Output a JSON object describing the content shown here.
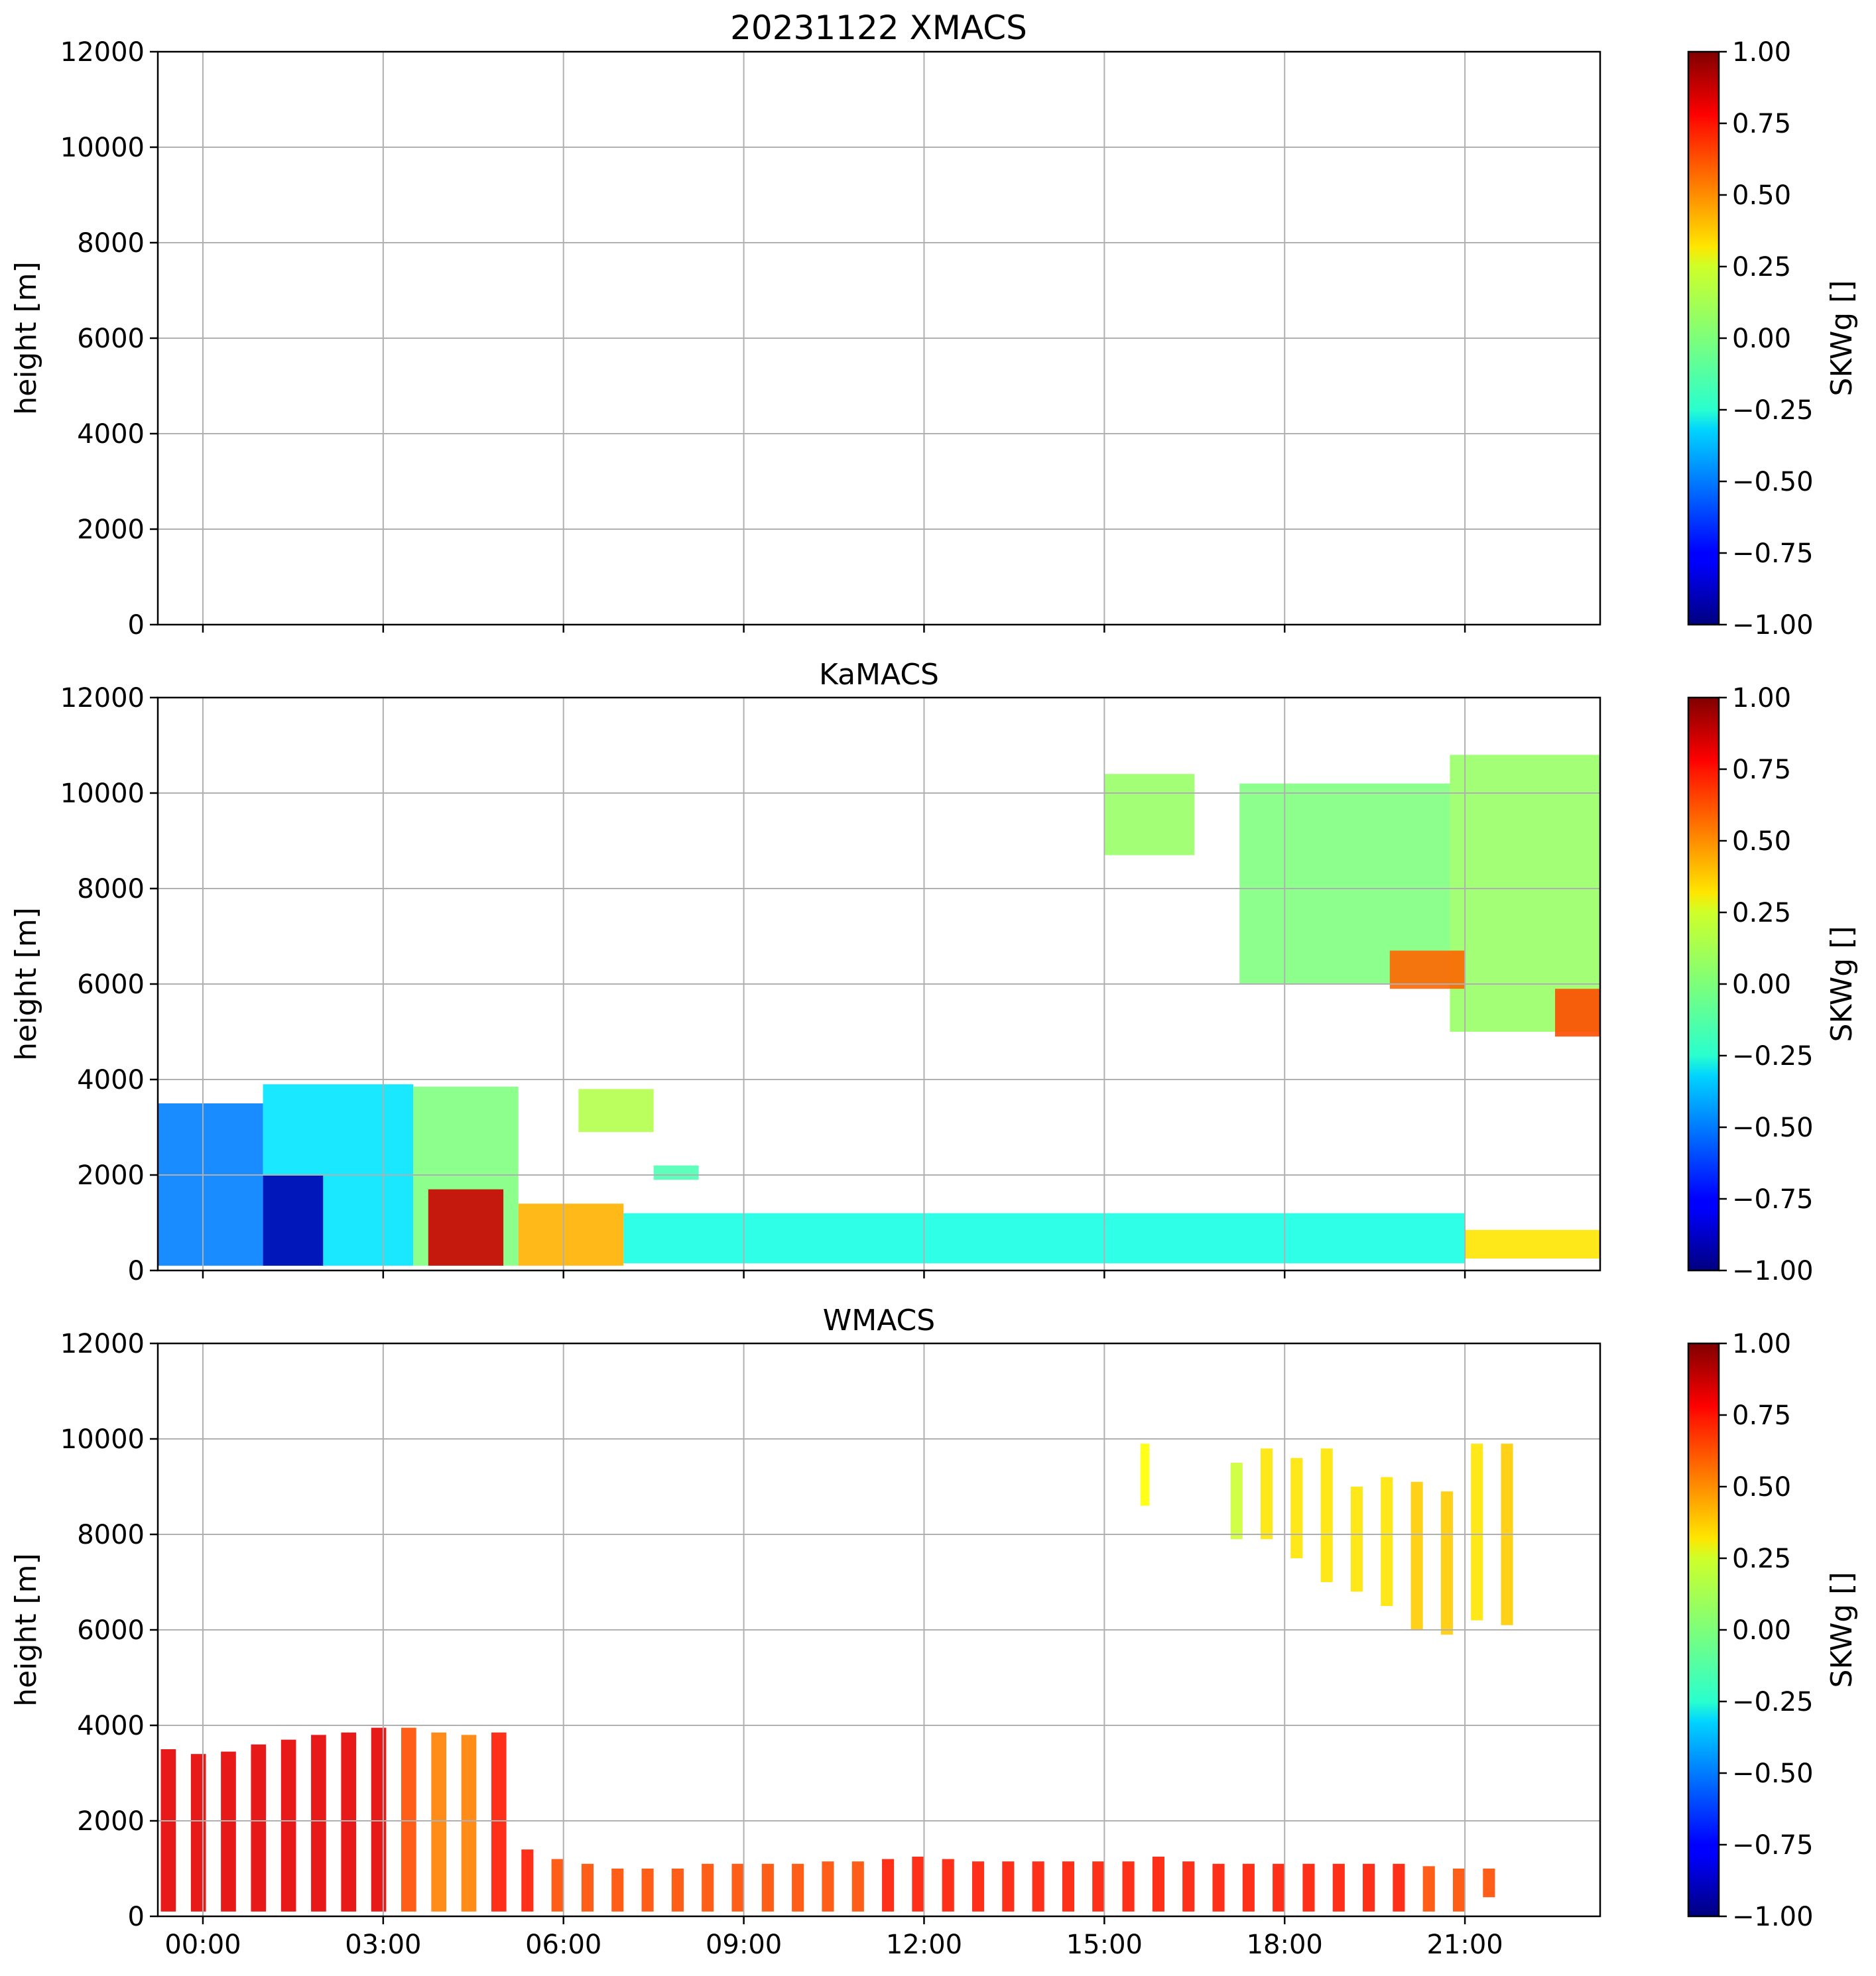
{
  "figure": {
    "title": "20231122 XMACS"
  },
  "chart_data": [
    {
      "type": "heatmap",
      "panel": "XMACS",
      "title": "",
      "xlabel": "",
      "ylabel": "height [m]",
      "xlim_hours": [
        -0.75,
        23.25
      ],
      "ylim": [
        0,
        12000
      ],
      "x_ticks": [],
      "y_ticks": [
        "0",
        "2000",
        "4000",
        "6000",
        "8000",
        "10000",
        "12000"
      ],
      "grid": true,
      "colorbar": {
        "label": "SKWg []",
        "colormap": "jet",
        "range": [
          -1,
          1
        ],
        "ticks": [
          "1.00",
          "0.75",
          "0.50",
          "0.25",
          "0.00",
          "−0.25",
          "−0.50",
          "−0.75",
          "−1.00"
        ]
      },
      "echo_regions": []
    },
    {
      "type": "heatmap",
      "panel": "KaMACS",
      "title": "KaMACS",
      "xlabel": "",
      "ylabel": "height [m]",
      "xlim_hours": [
        -0.75,
        23.25
      ],
      "ylim": [
        0,
        12000
      ],
      "x_ticks": [],
      "y_ticks": [
        "0",
        "2000",
        "4000",
        "6000",
        "8000",
        "10000",
        "12000"
      ],
      "grid": true,
      "colorbar": {
        "label": "SKWg []",
        "colormap": "jet",
        "range": [
          -1,
          1
        ],
        "ticks": [
          "1.00",
          "0.75",
          "0.50",
          "0.25",
          "0.00",
          "−0.25",
          "−0.50",
          "−0.75",
          "−1.00"
        ]
      },
      "echo_regions": [
        {
          "t0": -0.75,
          "t1": 1.0,
          "hmin": 100,
          "htop": 3500,
          "skw": -0.5
        },
        {
          "t0": 1.0,
          "t1": 3.5,
          "hmin": 100,
          "htop": 3900,
          "skw": -0.3
        },
        {
          "t0": 3.5,
          "t1": 5.25,
          "hmin": 100,
          "htop": 3850,
          "skw": 0.0
        },
        {
          "t0": 1.0,
          "t1": 2.0,
          "hmin": 100,
          "htop": 2000,
          "skw": -0.9
        },
        {
          "t0": 3.75,
          "t1": 5.0,
          "hmin": 100,
          "htop": 1700,
          "skw": 0.85
        },
        {
          "t0": 5.25,
          "t1": 7.0,
          "hmin": 100,
          "htop": 1400,
          "skw": 0.4
        },
        {
          "t0": 7.0,
          "t1": 21.0,
          "hmin": 150,
          "htop": 1200,
          "skw": -0.2
        },
        {
          "t0": 21.0,
          "t1": 23.25,
          "hmin": 250,
          "htop": 850,
          "skw": 0.3
        },
        {
          "t0": 6.25,
          "t1": 7.5,
          "hmin": 2900,
          "htop": 3800,
          "skw": 0.1
        },
        {
          "t0": 7.5,
          "t1": 8.25,
          "hmin": 1900,
          "htop": 2200,
          "skw": -0.1
        },
        {
          "t0": 15.0,
          "t1": 16.5,
          "hmin": 8700,
          "htop": 10400,
          "skw": 0.05
        },
        {
          "t0": 17.25,
          "t1": 20.75,
          "hmin": 6000,
          "htop": 10200,
          "skw": 0.0
        },
        {
          "t0": 20.75,
          "t1": 23.25,
          "hmin": 5000,
          "htop": 10800,
          "skw": 0.05
        },
        {
          "t0": 19.75,
          "t1": 21.0,
          "hmin": 5900,
          "htop": 6700,
          "skw": 0.55
        },
        {
          "t0": 22.5,
          "t1": 23.25,
          "hmin": 4900,
          "htop": 5900,
          "skw": 0.6
        }
      ]
    },
    {
      "type": "heatmap",
      "panel": "WMACS",
      "title": "WMACS",
      "xlabel": "",
      "ylabel": "height [m]",
      "xlim_hours": [
        -0.75,
        23.25
      ],
      "ylim": [
        0,
        12000
      ],
      "x_ticks": [
        "00:00",
        "03:00",
        "06:00",
        "09:00",
        "12:00",
        "15:00",
        "18:00",
        "21:00"
      ],
      "y_ticks": [
        "0",
        "2000",
        "4000",
        "6000",
        "8000",
        "10000",
        "12000"
      ],
      "grid": true,
      "colorbar": {
        "label": "SKWg []",
        "colormap": "jet",
        "range": [
          -1,
          1
        ],
        "ticks": [
          "1.00",
          "0.75",
          "0.50",
          "0.25",
          "0.00",
          "−0.25",
          "−0.50",
          "−0.75",
          "−1.00"
        ]
      },
      "echo_regions": [
        {
          "t0": -0.7,
          "t1": -0.45,
          "hmin": 100,
          "htop": 3500,
          "skw": 0.8
        },
        {
          "t0": -0.2,
          "t1": 0.05,
          "hmin": 100,
          "htop": 3400,
          "skw": 0.8
        },
        {
          "t0": 0.3,
          "t1": 0.55,
          "hmin": 100,
          "htop": 3450,
          "skw": 0.8
        },
        {
          "t0": 0.8,
          "t1": 1.05,
          "hmin": 100,
          "htop": 3600,
          "skw": 0.8
        },
        {
          "t0": 1.3,
          "t1": 1.55,
          "hmin": 100,
          "htop": 3700,
          "skw": 0.8
        },
        {
          "t0": 1.8,
          "t1": 2.05,
          "hmin": 100,
          "htop": 3800,
          "skw": 0.8
        },
        {
          "t0": 2.3,
          "t1": 2.55,
          "hmin": 100,
          "htop": 3850,
          "skw": 0.8
        },
        {
          "t0": 2.8,
          "t1": 3.05,
          "hmin": 100,
          "htop": 3950,
          "skw": 0.8
        },
        {
          "t0": 3.3,
          "t1": 3.55,
          "hmin": 100,
          "htop": 3950,
          "skw": 0.6
        },
        {
          "t0": 3.8,
          "t1": 4.05,
          "hmin": 100,
          "htop": 3850,
          "skw": 0.5
        },
        {
          "t0": 4.3,
          "t1": 4.55,
          "hmin": 100,
          "htop": 3800,
          "skw": 0.5
        },
        {
          "t0": 4.8,
          "t1": 5.05,
          "hmin": 100,
          "htop": 3850,
          "skw": 0.7
        },
        {
          "t0": 5.3,
          "t1": 5.5,
          "hmin": 100,
          "htop": 1400,
          "skw": 0.7
        },
        {
          "t0": 5.8,
          "t1": 6.0,
          "hmin": 100,
          "htop": 1200,
          "skw": 0.6
        },
        {
          "t0": 6.3,
          "t1": 6.5,
          "hmin": 100,
          "htop": 1100,
          "skw": 0.6
        },
        {
          "t0": 6.8,
          "t1": 7.0,
          "hmin": 100,
          "htop": 1000,
          "skw": 0.6
        },
        {
          "t0": 7.3,
          "t1": 7.5,
          "hmin": 100,
          "htop": 1000,
          "skw": 0.6
        },
        {
          "t0": 7.8,
          "t1": 8.0,
          "hmin": 100,
          "htop": 1000,
          "skw": 0.6
        },
        {
          "t0": 8.3,
          "t1": 8.5,
          "hmin": 100,
          "htop": 1100,
          "skw": 0.6
        },
        {
          "t0": 8.8,
          "t1": 9.0,
          "hmin": 100,
          "htop": 1100,
          "skw": 0.6
        },
        {
          "t0": 9.3,
          "t1": 9.5,
          "hmin": 100,
          "htop": 1100,
          "skw": 0.6
        },
        {
          "t0": 9.8,
          "t1": 10.0,
          "hmin": 100,
          "htop": 1100,
          "skw": 0.6
        },
        {
          "t0": 10.3,
          "t1": 10.5,
          "hmin": 100,
          "htop": 1150,
          "skw": 0.6
        },
        {
          "t0": 10.8,
          "t1": 11.0,
          "hmin": 100,
          "htop": 1150,
          "skw": 0.6
        },
        {
          "t0": 11.3,
          "t1": 11.5,
          "hmin": 100,
          "htop": 1200,
          "skw": 0.7
        },
        {
          "t0": 11.8,
          "t1": 12.0,
          "hmin": 100,
          "htop": 1250,
          "skw": 0.7
        },
        {
          "t0": 12.3,
          "t1": 12.5,
          "hmin": 100,
          "htop": 1200,
          "skw": 0.7
        },
        {
          "t0": 12.8,
          "t1": 13.0,
          "hmin": 100,
          "htop": 1150,
          "skw": 0.7
        },
        {
          "t0": 13.3,
          "t1": 13.5,
          "hmin": 100,
          "htop": 1150,
          "skw": 0.7
        },
        {
          "t0": 13.8,
          "t1": 14.0,
          "hmin": 100,
          "htop": 1150,
          "skw": 0.7
        },
        {
          "t0": 14.3,
          "t1": 14.5,
          "hmin": 100,
          "htop": 1150,
          "skw": 0.7
        },
        {
          "t0": 14.8,
          "t1": 15.0,
          "hmin": 100,
          "htop": 1150,
          "skw": 0.7
        },
        {
          "t0": 15.3,
          "t1": 15.5,
          "hmin": 100,
          "htop": 1150,
          "skw": 0.7
        },
        {
          "t0": 15.8,
          "t1": 16.0,
          "hmin": 100,
          "htop": 1250,
          "skw": 0.7
        },
        {
          "t0": 16.3,
          "t1": 16.5,
          "hmin": 100,
          "htop": 1150,
          "skw": 0.7
        },
        {
          "t0": 16.8,
          "t1": 17.0,
          "hmin": 100,
          "htop": 1100,
          "skw": 0.7
        },
        {
          "t0": 17.3,
          "t1": 17.5,
          "hmin": 100,
          "htop": 1100,
          "skw": 0.7
        },
        {
          "t0": 17.8,
          "t1": 18.0,
          "hmin": 100,
          "htop": 1100,
          "skw": 0.7
        },
        {
          "t0": 18.3,
          "t1": 18.5,
          "hmin": 100,
          "htop": 1100,
          "skw": 0.7
        },
        {
          "t0": 18.8,
          "t1": 19.0,
          "hmin": 100,
          "htop": 1100,
          "skw": 0.7
        },
        {
          "t0": 19.3,
          "t1": 19.5,
          "hmin": 100,
          "htop": 1100,
          "skw": 0.7
        },
        {
          "t0": 19.8,
          "t1": 20.0,
          "hmin": 100,
          "htop": 1100,
          "skw": 0.7
        },
        {
          "t0": 20.3,
          "t1": 20.5,
          "hmin": 100,
          "htop": 1050,
          "skw": 0.6
        },
        {
          "t0": 20.8,
          "t1": 21.0,
          "hmin": 100,
          "htop": 1000,
          "skw": 0.6
        },
        {
          "t0": 21.3,
          "t1": 21.5,
          "hmin": 400,
          "htop": 1000,
          "skw": 0.6
        },
        {
          "t0": 15.6,
          "t1": 15.75,
          "hmin": 8600,
          "htop": 9900,
          "skw": 0.25
        },
        {
          "t0": 17.1,
          "t1": 17.3,
          "hmin": 7900,
          "htop": 9500,
          "skw": 0.15
        },
        {
          "t0": 17.6,
          "t1": 17.8,
          "hmin": 7900,
          "htop": 9800,
          "skw": 0.3
        },
        {
          "t0": 18.1,
          "t1": 18.3,
          "hmin": 7500,
          "htop": 9600,
          "skw": 0.3
        },
        {
          "t0": 18.6,
          "t1": 18.8,
          "hmin": 7000,
          "htop": 9800,
          "skw": 0.3
        },
        {
          "t0": 19.1,
          "t1": 19.3,
          "hmin": 6800,
          "htop": 9000,
          "skw": 0.3
        },
        {
          "t0": 19.6,
          "t1": 19.8,
          "hmin": 6500,
          "htop": 9200,
          "skw": 0.3
        },
        {
          "t0": 20.1,
          "t1": 20.3,
          "hmin": 6000,
          "htop": 9100,
          "skw": 0.35
        },
        {
          "t0": 20.6,
          "t1": 20.8,
          "hmin": 5900,
          "htop": 8900,
          "skw": 0.35
        },
        {
          "t0": 21.1,
          "t1": 21.3,
          "hmin": 6200,
          "htop": 9900,
          "skw": 0.3
        },
        {
          "t0": 21.6,
          "t1": 21.8,
          "hmin": 6100,
          "htop": 9900,
          "skw": 0.35
        }
      ]
    }
  ]
}
